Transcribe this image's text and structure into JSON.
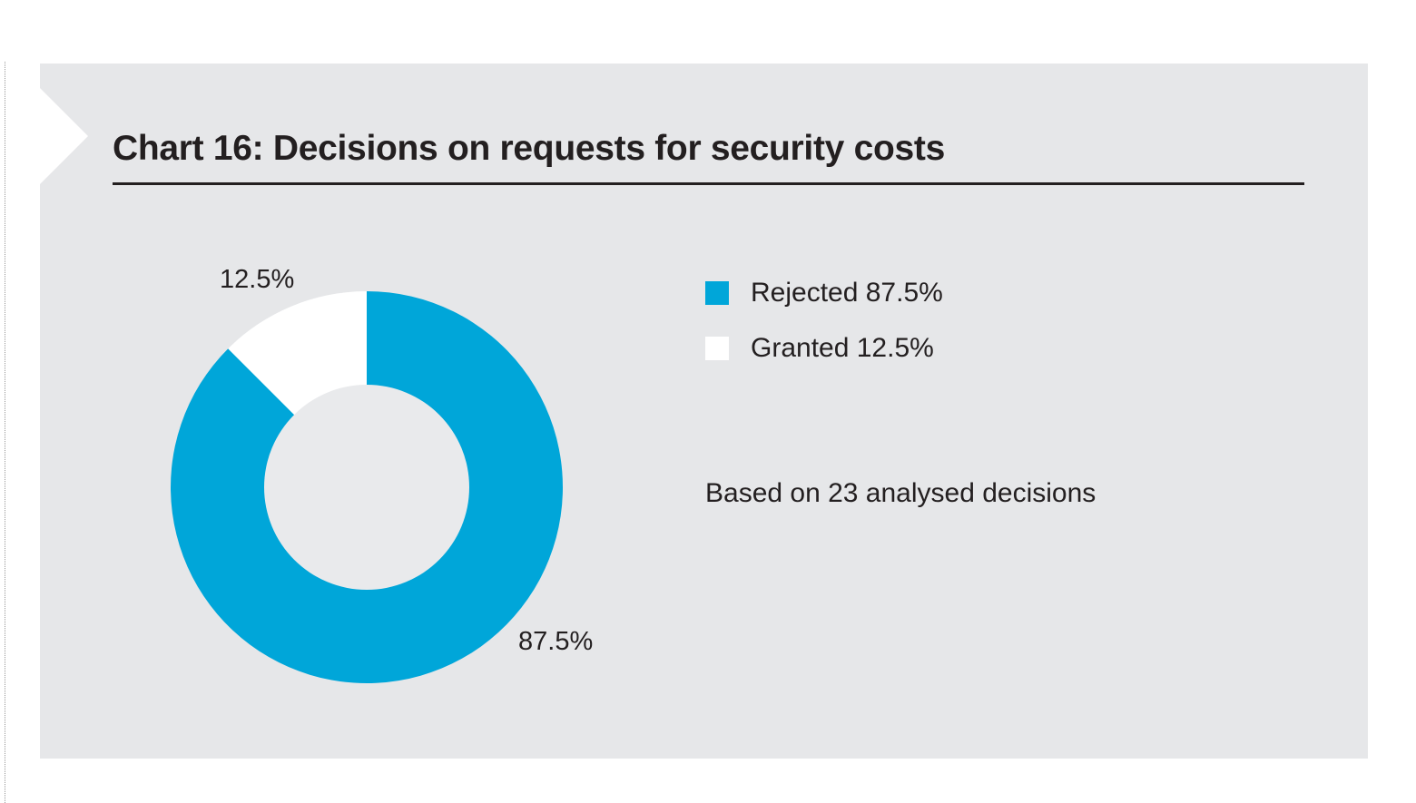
{
  "chart_data": {
    "type": "pie",
    "variant": "donut",
    "title": "Chart 16: Decisions on requests for security costs",
    "categories": [
      "Rejected",
      "Granted"
    ],
    "values": [
      87.5,
      12.5
    ],
    "data_labels": [
      "87.5%",
      "12.5%"
    ],
    "legend": [
      "Rejected 87.5%",
      "Granted 12.5%"
    ],
    "legend_placement": "right",
    "colors": [
      "#00a6d9",
      "#ffffff"
    ],
    "note": "Based on 23 analysed decisions"
  }
}
